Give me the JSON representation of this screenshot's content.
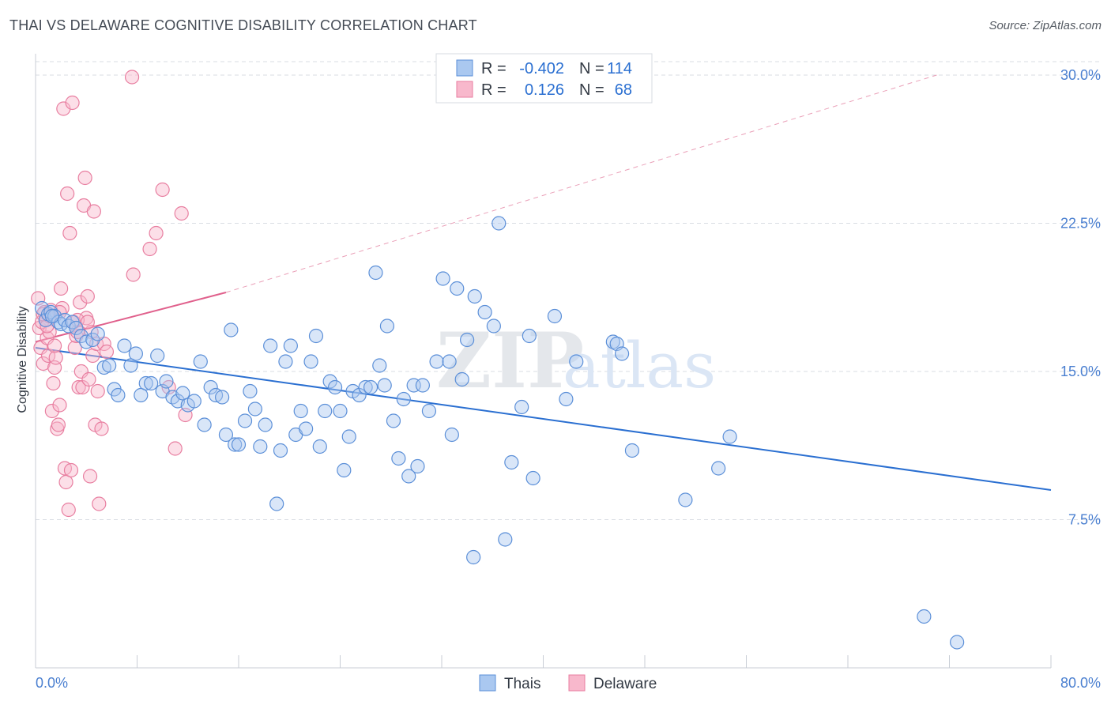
{
  "title": "THAI VS DELAWARE COGNITIVE DISABILITY CORRELATION CHART",
  "source": "Source: ZipAtlas.com",
  "watermark": {
    "zip": "ZIP",
    "atlas": "atlas"
  },
  "colors": {
    "thais_fill": "#aac8f0",
    "thais_stroke": "#5b8fd8",
    "thais_line": "#2a6fd1",
    "delaware_fill": "#f8b8cc",
    "delaware_stroke": "#e87ea0",
    "delaware_line": "#e0608c",
    "tick_label": "#4a7fd0",
    "grid": "#d9dde3"
  },
  "stats_legend": [
    {
      "series": "Thais",
      "r_label": "R =",
      "r_value": "-0.402",
      "n_label": "N =",
      "n_value": "114"
    },
    {
      "series": "Delaware",
      "r_label": "R =",
      "r_value": "0.126",
      "n_label": "N =",
      "n_value": "68"
    }
  ],
  "chart_data": {
    "type": "scatter",
    "title": "THAI VS DELAWARE COGNITIVE DISABILITY CORRELATION CHART",
    "xlabel": "",
    "ylabel": "Cognitive Disability",
    "xlim": [
      0,
      80
    ],
    "ylim": [
      0,
      30.8
    ],
    "x_tick_labels": [
      "0.0%",
      "80.0%"
    ],
    "y_ticks": [
      7.5,
      15.0,
      22.5,
      30.0
    ],
    "y_tick_labels": [
      "7.5%",
      "15.0%",
      "22.5%",
      "30.0%"
    ],
    "grid": true,
    "legend_position": "bottom-center",
    "series": [
      {
        "name": "Thais",
        "r": -0.402,
        "n": 114,
        "trend": {
          "x": [
            0,
            80
          ],
          "y": [
            16.2,
            9.0
          ],
          "style": "solid"
        },
        "points": [
          [
            0.5,
            18.2
          ],
          [
            0.8,
            17.6
          ],
          [
            1.0,
            17.9
          ],
          [
            1.2,
            18.0
          ],
          [
            1.5,
            17.8
          ],
          [
            1.8,
            17.5
          ],
          [
            2.0,
            17.4
          ],
          [
            2.3,
            17.6
          ],
          [
            2.6,
            17.3
          ],
          [
            2.9,
            17.5
          ],
          [
            3.2,
            17.2
          ],
          [
            3.6,
            16.8
          ],
          [
            4.0,
            16.5
          ],
          [
            4.5,
            16.6
          ],
          [
            4.9,
            16.9
          ],
          [
            5.4,
            15.2
          ],
          [
            5.8,
            15.3
          ],
          [
            6.2,
            14.1
          ],
          [
            6.5,
            13.8
          ],
          [
            7.0,
            16.3
          ],
          [
            7.5,
            15.3
          ],
          [
            7.9,
            15.9
          ],
          [
            8.3,
            13.8
          ],
          [
            8.7,
            14.4
          ],
          [
            9.1,
            14.4
          ],
          [
            9.6,
            15.8
          ],
          [
            10.0,
            14.0
          ],
          [
            10.3,
            14.5
          ],
          [
            10.8,
            13.7
          ],
          [
            11.2,
            13.5
          ],
          [
            11.6,
            13.9
          ],
          [
            12.0,
            13.3
          ],
          [
            12.5,
            13.5
          ],
          [
            13.0,
            15.5
          ],
          [
            13.3,
            12.3
          ],
          [
            13.8,
            14.2
          ],
          [
            14.2,
            13.8
          ],
          [
            14.7,
            13.7
          ],
          [
            15.0,
            11.8
          ],
          [
            15.4,
            17.1
          ],
          [
            15.7,
            11.3
          ],
          [
            16.0,
            11.3
          ],
          [
            16.5,
            12.5
          ],
          [
            16.9,
            14.0
          ],
          [
            17.3,
            13.1
          ],
          [
            17.7,
            11.2
          ],
          [
            18.1,
            12.3
          ],
          [
            18.5,
            16.3
          ],
          [
            19.0,
            8.3
          ],
          [
            19.3,
            11.0
          ],
          [
            19.7,
            15.5
          ],
          [
            20.1,
            16.3
          ],
          [
            20.5,
            11.8
          ],
          [
            20.9,
            13.0
          ],
          [
            21.3,
            12.1
          ],
          [
            21.7,
            15.5
          ],
          [
            22.1,
            16.8
          ],
          [
            22.4,
            11.2
          ],
          [
            22.8,
            13.0
          ],
          [
            23.2,
            14.5
          ],
          [
            23.6,
            14.2
          ],
          [
            24.0,
            13.0
          ],
          [
            24.3,
            10.0
          ],
          [
            24.7,
            11.7
          ],
          [
            25.0,
            14.0
          ],
          [
            25.5,
            13.8
          ],
          [
            26.0,
            14.2
          ],
          [
            26.4,
            14.2
          ],
          [
            26.8,
            20.0
          ],
          [
            27.1,
            15.3
          ],
          [
            27.5,
            14.3
          ],
          [
            27.7,
            17.3
          ],
          [
            28.2,
            12.5
          ],
          [
            28.6,
            10.6
          ],
          [
            29.0,
            13.6
          ],
          [
            29.4,
            9.7
          ],
          [
            29.8,
            14.3
          ],
          [
            30.1,
            10.2
          ],
          [
            30.5,
            14.3
          ],
          [
            31.0,
            13.0
          ],
          [
            31.6,
            15.5
          ],
          [
            32.1,
            19.7
          ],
          [
            32.6,
            15.5
          ],
          [
            32.8,
            11.8
          ],
          [
            33.2,
            19.2
          ],
          [
            33.6,
            14.6
          ],
          [
            34.0,
            16.6
          ],
          [
            34.6,
            18.8
          ],
          [
            35.4,
            18.0
          ],
          [
            36.1,
            17.3
          ],
          [
            36.5,
            22.5
          ],
          [
            37.0,
            6.5
          ],
          [
            37.5,
            10.4
          ],
          [
            38.3,
            13.2
          ],
          [
            38.9,
            16.8
          ],
          [
            39.2,
            9.6
          ],
          [
            40.9,
            17.8
          ],
          [
            41.8,
            13.6
          ],
          [
            42.6,
            15.5
          ],
          [
            45.5,
            16.5
          ],
          [
            45.8,
            16.4
          ],
          [
            46.2,
            15.9
          ],
          [
            47.0,
            11.0
          ],
          [
            51.2,
            8.5
          ],
          [
            53.8,
            10.1
          ],
          [
            54.7,
            11.7
          ],
          [
            70.0,
            2.6
          ],
          [
            72.6,
            1.3
          ],
          [
            34.5,
            5.6
          ],
          [
            1.3,
            17.8
          ]
        ]
      },
      {
        "name": "Delaware",
        "r": 0.126,
        "n": 68,
        "trend": {
          "x": [
            0,
            15
          ],
          "y": [
            16.5,
            19.0
          ],
          "style": "solid",
          "extension": {
            "x": [
              15,
              71
            ],
            "y": [
              19.0,
              30.0
            ],
            "style": "dashed"
          }
        },
        "points": [
          [
            0.2,
            18.7
          ],
          [
            0.3,
            17.2
          ],
          [
            0.4,
            16.2
          ],
          [
            0.5,
            17.5
          ],
          [
            0.6,
            15.4
          ],
          [
            0.7,
            18.0
          ],
          [
            0.8,
            17.6
          ],
          [
            0.9,
            16.7
          ],
          [
            1.0,
            15.8
          ],
          [
            1.1,
            17.0
          ],
          [
            1.2,
            18.1
          ],
          [
            1.3,
            13.0
          ],
          [
            1.4,
            14.4
          ],
          [
            1.5,
            15.2
          ],
          [
            1.6,
            15.7
          ],
          [
            1.7,
            12.1
          ],
          [
            1.8,
            12.3
          ],
          [
            1.9,
            13.3
          ],
          [
            2.0,
            19.2
          ],
          [
            2.1,
            18.2
          ],
          [
            2.2,
            28.3
          ],
          [
            2.5,
            24.0
          ],
          [
            2.7,
            22.0
          ],
          [
            2.9,
            28.6
          ],
          [
            3.0,
            17.5
          ],
          [
            3.1,
            16.2
          ],
          [
            3.2,
            16.8
          ],
          [
            3.3,
            17.0
          ],
          [
            3.4,
            14.2
          ],
          [
            3.5,
            18.5
          ],
          [
            3.6,
            15.0
          ],
          [
            3.7,
            14.2
          ],
          [
            3.8,
            23.4
          ],
          [
            3.9,
            24.8
          ],
          [
            4.0,
            17.7
          ],
          [
            4.1,
            18.8
          ],
          [
            4.2,
            14.6
          ],
          [
            4.3,
            9.7
          ],
          [
            4.4,
            17.0
          ],
          [
            4.5,
            15.8
          ],
          [
            4.6,
            23.1
          ],
          [
            4.7,
            12.3
          ],
          [
            4.8,
            16.4
          ],
          [
            4.9,
            14.0
          ],
          [
            5.0,
            8.3
          ],
          [
            5.2,
            12.1
          ],
          [
            5.4,
            16.4
          ],
          [
            5.6,
            16.0
          ],
          [
            7.6,
            29.9
          ],
          [
            7.7,
            19.9
          ],
          [
            9.0,
            21.2
          ],
          [
            9.5,
            22.0
          ],
          [
            10.0,
            24.2
          ],
          [
            10.5,
            14.2
          ],
          [
            11.0,
            11.1
          ],
          [
            11.5,
            23.0
          ],
          [
            11.8,
            12.8
          ],
          [
            2.3,
            10.1
          ],
          [
            2.4,
            9.4
          ],
          [
            2.6,
            8.0
          ],
          [
            2.8,
            10.0
          ],
          [
            0.9,
            17.3
          ],
          [
            1.1,
            17.8
          ],
          [
            1.9,
            18.0
          ],
          [
            3.3,
            17.6
          ],
          [
            4.1,
            17.5
          ],
          [
            1.5,
            16.3
          ],
          [
            0.6,
            17.9
          ]
        ]
      }
    ]
  },
  "bottom_legend": [
    {
      "label": "Thais"
    },
    {
      "label": "Delaware"
    }
  ]
}
